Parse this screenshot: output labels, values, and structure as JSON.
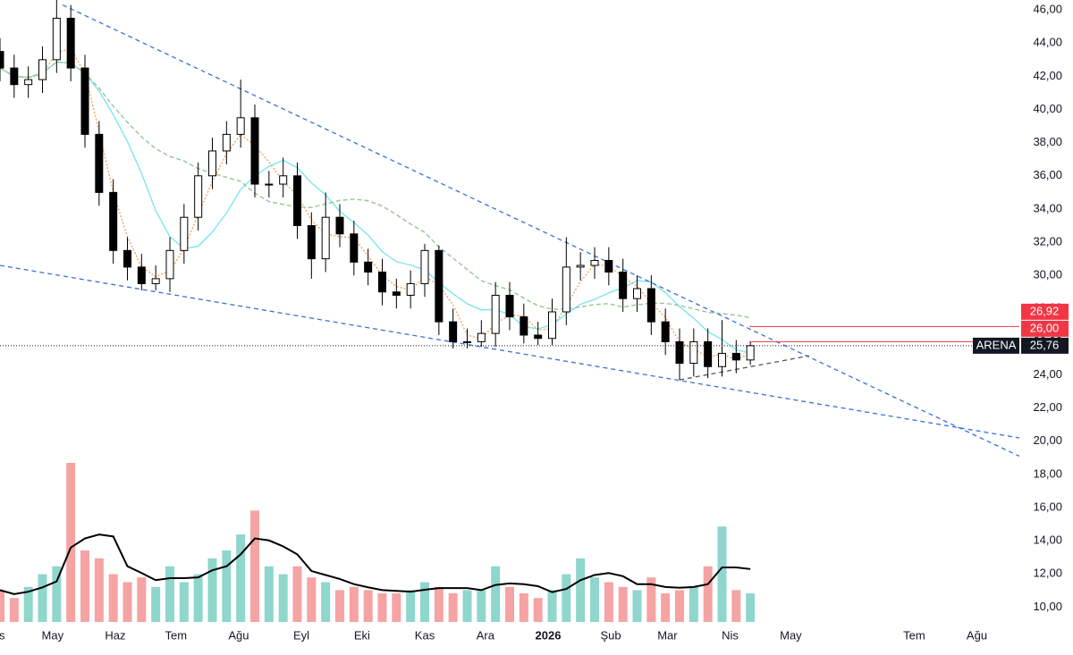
{
  "chart_data": {
    "type": "candlestick",
    "x": [
      4,
      11,
      18,
      25,
      32,
      39,
      46,
      53,
      60,
      67,
      74,
      81,
      88,
      95,
      102,
      109,
      116,
      123,
      130,
      137,
      144,
      151,
      158,
      165,
      172,
      179,
      186,
      193,
      200,
      207,
      214,
      221,
      228,
      235,
      242,
      249,
      256,
      263,
      270,
      277,
      284,
      291,
      298,
      305,
      312,
      319,
      326,
      333,
      340,
      347,
      354,
      361,
      368,
      375
    ],
    "open": [
      43.5,
      42.5,
      41.5,
      41.8,
      43,
      45.5,
      42.5,
      38.5,
      35,
      31.5,
      30.5,
      29.5,
      29.8,
      31.5,
      33.5,
      36,
      37.5,
      38.5,
      39.5,
      35.5,
      35.5,
      36,
      33,
      31,
      33.5,
      32.5,
      30.8,
      30.2,
      29,
      28.8,
      29.5,
      31.5,
      27.2,
      26,
      26,
      26.5,
      28.8,
      27.5,
      26.4,
      26.2,
      27.8,
      30.5,
      30.6,
      30.9,
      30.2,
      28.6,
      29.2,
      27.2,
      26,
      24.7,
      26,
      24.5,
      25.3,
      24.9
    ],
    "high": [
      44.3,
      43.3,
      42.6,
      43.8,
      46.6,
      46.3,
      43.3,
      39.3,
      35.8,
      32.3,
      31.3,
      30.6,
      32.3,
      34.3,
      36.8,
      38.3,
      39.3,
      41.8,
      40.3,
      36.3,
      37.1,
      36.8,
      33.8,
      35,
      34.3,
      33.3,
      31.6,
      31,
      29.8,
      30.3,
      31.9,
      31.8,
      28,
      26.8,
      27.3,
      29.6,
      29.6,
      28.3,
      27.2,
      28.6,
      32.3,
      31.4,
      31.7,
      31.7,
      31,
      30,
      30,
      28,
      26.8,
      26.8,
      26.8,
      27.3,
      26.1,
      26
    ],
    "low": [
      41.7,
      40.7,
      40.7,
      41,
      42.2,
      41.7,
      37.7,
      34.2,
      30.7,
      29.7,
      29.1,
      29.1,
      29,
      30.7,
      32.7,
      35.2,
      36.7,
      37.7,
      34.7,
      34.7,
      34.7,
      32.2,
      29.8,
      30.2,
      31.7,
      30,
      29.4,
      28.2,
      28,
      28,
      28.7,
      26.4,
      25.6,
      25.6,
      25.7,
      25.7,
      26.7,
      25.9,
      25.8,
      25.8,
      27,
      29.7,
      29.8,
      29.4,
      27.8,
      27.8,
      26.4,
      25.2,
      23.7,
      23.9,
      23.8,
      23.9,
      24.1,
      24.6
    ],
    "close": [
      42.5,
      41.5,
      41.8,
      43,
      45.5,
      42.5,
      38.5,
      35,
      31.5,
      30.5,
      29.5,
      29.8,
      31.5,
      33.5,
      36,
      37.5,
      38.5,
      39.5,
      35.5,
      35.5,
      36,
      33,
      31,
      33.5,
      32.5,
      30.8,
      30.2,
      29,
      28.8,
      29.5,
      31.5,
      27.2,
      26,
      26,
      26.5,
      28.8,
      27.5,
      26.4,
      26.2,
      27.8,
      30.5,
      30.6,
      30.9,
      30.2,
      28.6,
      29.2,
      27.2,
      26,
      24.7,
      26,
      24.5,
      25.3,
      24.9,
      25.76
    ],
    "volume": [
      20,
      15,
      22,
      30,
      35,
      100,
      45,
      40,
      30,
      25,
      28,
      22,
      35,
      25,
      30,
      40,
      45,
      55,
      70,
      35,
      30,
      35,
      28,
      25,
      20,
      22,
      20,
      18,
      18,
      20,
      25,
      22,
      18,
      20,
      20,
      35,
      22,
      18,
      15,
      20,
      30,
      40,
      28,
      25,
      22,
      20,
      28,
      18,
      20,
      22,
      35,
      60,
      20,
      18
    ],
    "up_color": "#ffffff",
    "down_color": "#000000",
    "wick_color": "#000000",
    "volume_up_color": "#8fd6cd",
    "volume_down_color": "#f5a3a3",
    "volume_ma": {
      "period": 4,
      "color": "#000000"
    },
    "moving_averages": [
      {
        "period": 7,
        "color": "#7fe6f0",
        "dash": "none"
      },
      {
        "period": 3,
        "color": "#f4a261",
        "dash": "2 2"
      },
      {
        "period": 14,
        "color": "#97c497",
        "dash": "5 3"
      }
    ],
    "trendlines": [
      {
        "points": [
          [
            35,
            46.3
          ],
          [
            508,
            19.1
          ]
        ],
        "color": "#3b6fd6"
      },
      {
        "points": [
          [
            4,
            30.6
          ],
          [
            508,
            20.2
          ]
        ],
        "color": "#3b6fd6"
      },
      {
        "points": [
          [
            340,
            23.7
          ],
          [
            404,
            25.15
          ]
        ],
        "color": "#555555"
      }
    ],
    "price_lines": [
      {
        "value": 26.92,
        "label": "26,92",
        "color": "#f23645"
      },
      {
        "value": 26,
        "label": "26,00",
        "color": "#f23645"
      },
      {
        "name": "ARENA",
        "value": 25.76,
        "label": "25,76",
        "color": "#131722"
      }
    ],
    "xlim": [
      4,
      508
    ],
    "xticks": [
      {
        "value": 5,
        "label": "s"
      },
      {
        "value": 30,
        "label": "May"
      },
      {
        "value": 61,
        "label": "Haz"
      },
      {
        "value": 91,
        "label": "Tem"
      },
      {
        "value": 122,
        "label": "Ağu"
      },
      {
        "value": 153,
        "label": "Eyl"
      },
      {
        "value": 183,
        "label": "Eki"
      },
      {
        "value": 214,
        "label": "Kas"
      },
      {
        "value": 244,
        "label": "Ara"
      },
      {
        "value": 275,
        "label": "2026"
      },
      {
        "value": 306,
        "label": "Şub"
      },
      {
        "value": 334,
        "label": "Mar"
      },
      {
        "value": 365,
        "label": "Nis"
      },
      {
        "value": 395,
        "label": "May"
      },
      {
        "value": 456,
        "label": "Tem"
      },
      {
        "value": 487,
        "label": "Ağu"
      }
    ],
    "ylim": [
      9,
      46.6
    ],
    "yticks": [
      {
        "value": 46,
        "label": "46,00"
      },
      {
        "value": 44,
        "label": "44,00"
      },
      {
        "value": 42,
        "label": "42,00"
      },
      {
        "value": 40,
        "label": "40,00"
      },
      {
        "value": 38,
        "label": "38,00"
      },
      {
        "value": 36,
        "label": "36,00"
      },
      {
        "value": 34,
        "label": "34,00"
      },
      {
        "value": 32,
        "label": "32,00"
      },
      {
        "value": 30,
        "label": "30,00"
      },
      {
        "value": 28,
        "label": "28,00"
      },
      {
        "value": 26,
        "label": "26,00"
      },
      {
        "value": 24,
        "label": "24,00"
      },
      {
        "value": 22,
        "label": "22,00"
      },
      {
        "value": 20,
        "label": "20,00"
      },
      {
        "value": 18,
        "label": "18,00"
      },
      {
        "value": 16,
        "label": "16,00"
      },
      {
        "value": 14,
        "label": "14,00"
      },
      {
        "value": 12,
        "label": "12,00"
      },
      {
        "value": 10,
        "label": "10,00"
      }
    ]
  }
}
